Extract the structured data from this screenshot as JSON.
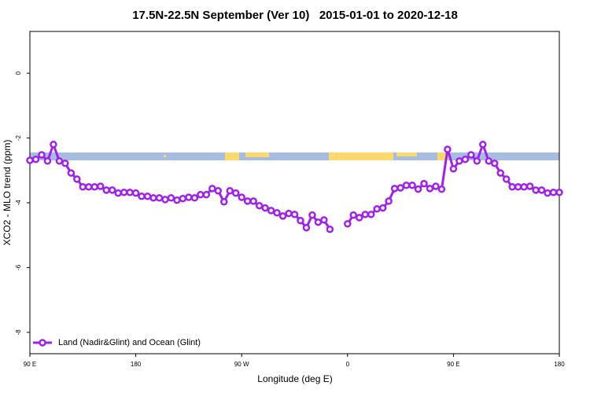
{
  "chart_data": {
    "type": "line",
    "title": "17.5N-22.5N September (Ver 10)   2015-01-01 to 2020-12-18",
    "xlabel": "Longitude (deg E)",
    "ylabel": "XCO2 - MLO trend (ppm)",
    "xlim": [
      90,
      540
    ],
    "ylim": [
      -8.66,
      1.29
    ],
    "xticks": [
      {
        "value": 90,
        "label": "90 E"
      },
      180,
      {
        "value": 270,
        "label": "90 W"
      },
      {
        "value": 360,
        "label": "0"
      },
      {
        "value": 450,
        "label": "90 E"
      },
      {
        "value": 540,
        "label": "180"
      }
    ],
    "yticks": [
      0,
      -2,
      -4,
      -6,
      -8
    ],
    "legend": "bottom-left",
    "x": [
      90,
      95,
      100,
      105,
      110,
      115,
      120,
      125,
      130,
      135,
      140,
      145,
      150,
      155,
      160,
      165,
      170,
      175,
      180,
      185,
      190,
      195,
      200,
      205,
      210,
      215,
      220,
      225,
      230,
      235,
      240,
      245,
      250,
      255,
      260,
      265,
      270,
      275,
      280,
      285,
      290,
      295,
      300,
      305,
      310,
      315,
      320,
      325,
      330,
      335,
      340,
      345,
      350,
      355,
      360,
      365,
      370,
      375,
      380,
      385,
      390,
      395,
      400,
      405,
      410,
      415,
      420,
      425,
      430,
      435,
      440,
      445,
      450,
      455,
      460,
      465,
      470,
      475,
      480,
      485,
      490,
      495,
      500,
      505,
      510,
      515,
      520,
      525,
      530,
      535,
      540
    ],
    "series": [
      {
        "name": "Land (Nadir&Glint) and Ocean (Glint)",
        "color": "#a020f0",
        "values": [
          -2.69,
          -2.66,
          -2.52,
          -2.71,
          -2.2,
          -2.71,
          -2.78,
          -3.08,
          -3.27,
          -3.51,
          -3.51,
          -3.51,
          -3.49,
          -3.61,
          -3.61,
          -3.7,
          -3.68,
          -3.68,
          -3.7,
          -3.8,
          -3.8,
          -3.85,
          -3.85,
          -3.9,
          -3.85,
          -3.92,
          -3.87,
          -3.83,
          -3.85,
          -3.75,
          -3.75,
          -3.56,
          -3.63,
          -3.97,
          -3.63,
          -3.7,
          -3.83,
          -3.95,
          -3.95,
          -4.09,
          -4.16,
          -4.24,
          -4.31,
          -4.41,
          -4.33,
          -4.36,
          -4.55,
          -4.77,
          -4.38,
          -4.6,
          -4.53,
          -4.82,
          null,
          null,
          -4.65,
          -4.38,
          -4.46,
          -4.36,
          -4.36,
          -4.19,
          -4.16,
          -3.95,
          -3.56,
          -3.54,
          -3.46,
          -3.46,
          -3.58,
          -3.41,
          -3.56,
          -3.49,
          -3.58,
          -2.35,
          -2.95,
          -2.71,
          -2.66,
          -2.52,
          -2.71,
          -2.2,
          -2.71,
          -2.78,
          -3.08,
          -3.27,
          -3.51,
          -3.51,
          -3.51,
          -3.49,
          -3.61,
          -3.61,
          -3.7,
          -3.68,
          -3.68
        ]
      }
    ]
  }
}
